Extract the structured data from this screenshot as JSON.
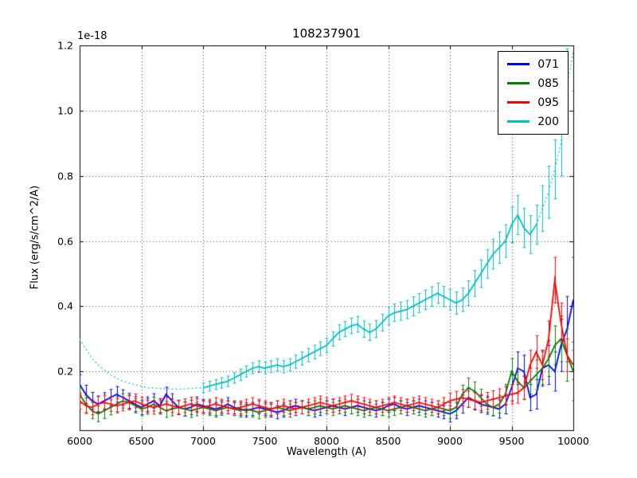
{
  "chart_data": {
    "type": "line",
    "title": "108237901",
    "xlabel": "Wavelength (A)",
    "ylabel": "Flux (erg/s/cm^2/A)",
    "y_offset_label": "1e-18",
    "xlim": [
      6000,
      10000
    ],
    "ylim": [
      0.02,
      1.2
    ],
    "xticks": [
      6000,
      6500,
      7000,
      7500,
      8000,
      8500,
      9000,
      9500,
      10000
    ],
    "xtick_labels": [
      "6000",
      "6500",
      "7000",
      "7500",
      "8000",
      "8500",
      "9000",
      "9500",
      "10000"
    ],
    "yticks": [
      0.2,
      0.4,
      0.6,
      0.8,
      1.0,
      1.2
    ],
    "ytick_labels": [
      "0.2",
      "0.4",
      "0.6",
      "0.8",
      "1.0",
      "1.2"
    ],
    "grid": true,
    "grid_style": "dotted",
    "error_bars": true,
    "legend_position": "upper right",
    "x": [
      6000,
      6050,
      6100,
      6150,
      6200,
      6250,
      6300,
      6350,
      6400,
      6450,
      6500,
      6550,
      6600,
      6650,
      6700,
      6750,
      6800,
      6850,
      6900,
      6950,
      7000,
      7050,
      7100,
      7150,
      7200,
      7250,
      7300,
      7350,
      7400,
      7450,
      7500,
      7550,
      7600,
      7650,
      7700,
      7750,
      7800,
      7850,
      7900,
      7950,
      8000,
      8050,
      8100,
      8150,
      8200,
      8250,
      8300,
      8350,
      8400,
      8450,
      8500,
      8550,
      8600,
      8650,
      8700,
      8750,
      8800,
      8850,
      8900,
      8950,
      9000,
      9050,
      9100,
      9150,
      9200,
      9250,
      9300,
      9350,
      9400,
      9450,
      9500,
      9550,
      9600,
      9650,
      9700,
      9750,
      9800,
      9850,
      9900,
      9950,
      10000
    ],
    "series": [
      {
        "name": "071",
        "color": "#0000ff",
        "style": "solid",
        "values": [
          0.16,
          0.13,
          0.11,
          0.1,
          0.11,
          0.12,
          0.13,
          0.12,
          0.11,
          0.1,
          0.09,
          0.1,
          0.11,
          0.095,
          0.13,
          0.11,
          0.09,
          0.085,
          0.09,
          0.1,
          0.095,
          0.09,
          0.085,
          0.09,
          0.1,
          0.09,
          0.085,
          0.08,
          0.085,
          0.09,
          0.085,
          0.08,
          0.075,
          0.08,
          0.09,
          0.095,
          0.09,
          0.085,
          0.08,
          0.085,
          0.09,
          0.095,
          0.09,
          0.085,
          0.09,
          0.095,
          0.09,
          0.085,
          0.08,
          0.085,
          0.095,
          0.1,
          0.09,
          0.085,
          0.09,
          0.095,
          0.09,
          0.085,
          0.08,
          0.075,
          0.07,
          0.08,
          0.1,
          0.12,
          0.11,
          0.1,
          0.095,
          0.09,
          0.085,
          0.1,
          0.15,
          0.21,
          0.2,
          0.12,
          0.13,
          0.21,
          0.22,
          0.2,
          0.28,
          0.33,
          0.42
        ],
        "err": [
          0.03,
          0.028,
          0.026,
          0.025,
          0.025,
          0.025,
          0.024,
          0.024,
          0.023,
          0.023,
          0.022,
          0.022,
          0.022,
          0.022,
          0.022,
          0.022,
          0.022,
          0.022,
          0.022,
          0.022,
          0.02,
          0.02,
          0.02,
          0.02,
          0.02,
          0.02,
          0.02,
          0.02,
          0.02,
          0.02,
          0.02,
          0.02,
          0.02,
          0.02,
          0.02,
          0.02,
          0.02,
          0.02,
          0.02,
          0.02,
          0.02,
          0.02,
          0.02,
          0.02,
          0.02,
          0.02,
          0.02,
          0.02,
          0.02,
          0.02,
          0.02,
          0.02,
          0.02,
          0.02,
          0.02,
          0.02,
          0.02,
          0.02,
          0.02,
          0.02,
          0.025,
          0.025,
          0.028,
          0.03,
          0.028,
          0.026,
          0.026,
          0.026,
          0.028,
          0.03,
          0.04,
          0.05,
          0.05,
          0.04,
          0.045,
          0.055,
          0.06,
          0.06,
          0.08,
          0.1,
          0.13
        ]
      },
      {
        "name": "085",
        "color": "#008000",
        "style": "solid",
        "values": [
          0.13,
          0.1,
          0.08,
          0.07,
          0.08,
          0.09,
          0.1,
          0.11,
          0.105,
          0.095,
          0.085,
          0.09,
          0.1,
          0.09,
          0.08,
          0.085,
          0.09,
          0.085,
          0.08,
          0.085,
          0.09,
          0.085,
          0.08,
          0.085,
          0.09,
          0.085,
          0.08,
          0.085,
          0.08,
          0.075,
          0.08,
          0.085,
          0.09,
          0.085,
          0.08,
          0.085,
          0.09,
          0.085,
          0.09,
          0.095,
          0.09,
          0.085,
          0.09,
          0.095,
          0.09,
          0.085,
          0.08,
          0.085,
          0.09,
          0.085,
          0.08,
          0.085,
          0.09,
          0.095,
          0.09,
          0.085,
          0.08,
          0.085,
          0.09,
          0.085,
          0.08,
          0.09,
          0.13,
          0.15,
          0.14,
          0.12,
          0.1,
          0.09,
          0.1,
          0.13,
          0.2,
          0.17,
          0.15,
          0.17,
          0.19,
          0.21,
          0.24,
          0.28,
          0.3,
          0.25,
          0.2
        ],
        "err": [
          0.028,
          0.026,
          0.025,
          0.024,
          0.024,
          0.023,
          0.023,
          0.022,
          0.022,
          0.022,
          0.021,
          0.021,
          0.021,
          0.021,
          0.021,
          0.021,
          0.021,
          0.021,
          0.021,
          0.021,
          0.02,
          0.02,
          0.02,
          0.02,
          0.02,
          0.02,
          0.02,
          0.02,
          0.02,
          0.02,
          0.02,
          0.02,
          0.02,
          0.02,
          0.02,
          0.02,
          0.02,
          0.02,
          0.02,
          0.02,
          0.02,
          0.02,
          0.02,
          0.02,
          0.02,
          0.02,
          0.02,
          0.02,
          0.02,
          0.02,
          0.02,
          0.02,
          0.02,
          0.02,
          0.02,
          0.02,
          0.02,
          0.02,
          0.02,
          0.02,
          0.024,
          0.025,
          0.028,
          0.03,
          0.028,
          0.026,
          0.025,
          0.025,
          0.027,
          0.03,
          0.04,
          0.038,
          0.036,
          0.04,
          0.045,
          0.05,
          0.055,
          0.06,
          0.07,
          0.08,
          0.09
        ]
      },
      {
        "name": "095",
        "color": "#ff0000",
        "style": "solid",
        "values": [
          0.11,
          0.095,
          0.09,
          0.1,
          0.105,
          0.1,
          0.095,
          0.1,
          0.105,
          0.11,
          0.1,
          0.095,
          0.09,
          0.095,
          0.1,
          0.095,
          0.09,
          0.095,
          0.1,
          0.095,
          0.09,
          0.095,
          0.1,
          0.095,
          0.09,
          0.085,
          0.09,
          0.095,
          0.1,
          0.095,
          0.09,
          0.085,
          0.09,
          0.095,
          0.09,
          0.085,
          0.09,
          0.095,
          0.1,
          0.105,
          0.1,
          0.095,
          0.1,
          0.105,
          0.11,
          0.105,
          0.1,
          0.095,
          0.09,
          0.095,
          0.1,
          0.105,
          0.1,
          0.095,
          0.1,
          0.105,
          0.1,
          0.095,
          0.09,
          0.1,
          0.11,
          0.115,
          0.12,
          0.115,
          0.11,
          0.105,
          0.11,
          0.115,
          0.12,
          0.125,
          0.13,
          0.135,
          0.15,
          0.22,
          0.26,
          0.22,
          0.3,
          0.48,
          0.35,
          0.25,
          0.22
        ],
        "err": [
          0.025,
          0.024,
          0.023,
          0.023,
          0.022,
          0.022,
          0.022,
          0.021,
          0.021,
          0.021,
          0.021,
          0.021,
          0.021,
          0.021,
          0.021,
          0.021,
          0.021,
          0.021,
          0.021,
          0.021,
          0.02,
          0.02,
          0.02,
          0.02,
          0.02,
          0.02,
          0.02,
          0.02,
          0.02,
          0.02,
          0.02,
          0.02,
          0.02,
          0.02,
          0.02,
          0.02,
          0.02,
          0.02,
          0.02,
          0.02,
          0.02,
          0.02,
          0.02,
          0.02,
          0.02,
          0.02,
          0.02,
          0.02,
          0.02,
          0.02,
          0.02,
          0.02,
          0.02,
          0.02,
          0.02,
          0.02,
          0.02,
          0.02,
          0.02,
          0.02,
          0.024,
          0.024,
          0.025,
          0.025,
          0.025,
          0.025,
          0.026,
          0.026,
          0.027,
          0.028,
          0.03,
          0.032,
          0.035,
          0.045,
          0.05,
          0.045,
          0.055,
          0.07,
          0.06,
          0.05,
          0.045
        ]
      },
      {
        "name": "200",
        "color": "#00bfbf",
        "style": "solid_with_dotted_ends",
        "solid_range": [
          7000,
          9700
        ],
        "values": [
          0.3,
          0.27,
          0.24,
          0.22,
          0.205,
          0.19,
          0.18,
          0.17,
          0.165,
          0.16,
          0.155,
          0.15,
          0.15,
          0.148,
          0.147,
          0.146,
          0.146,
          0.147,
          0.148,
          0.15,
          0.15,
          0.155,
          0.16,
          0.165,
          0.17,
          0.18,
          0.19,
          0.2,
          0.21,
          0.215,
          0.21,
          0.215,
          0.22,
          0.215,
          0.22,
          0.23,
          0.24,
          0.25,
          0.26,
          0.27,
          0.28,
          0.3,
          0.32,
          0.33,
          0.34,
          0.345,
          0.33,
          0.32,
          0.33,
          0.35,
          0.37,
          0.38,
          0.385,
          0.39,
          0.4,
          0.41,
          0.42,
          0.43,
          0.44,
          0.43,
          0.42,
          0.41,
          0.42,
          0.44,
          0.47,
          0.5,
          0.53,
          0.56,
          0.58,
          0.6,
          0.65,
          0.68,
          0.64,
          0.62,
          0.65,
          0.7,
          0.75,
          0.82,
          0.9,
          1.08,
          1.18
        ],
        "err": [
          0,
          0,
          0,
          0,
          0,
          0,
          0,
          0,
          0,
          0,
          0,
          0,
          0,
          0,
          0,
          0,
          0,
          0,
          0,
          0,
          0.015,
          0.015,
          0.015,
          0.016,
          0.016,
          0.016,
          0.017,
          0.017,
          0.017,
          0.018,
          0.018,
          0.018,
          0.019,
          0.019,
          0.019,
          0.02,
          0.02,
          0.02,
          0.021,
          0.021,
          0.022,
          0.022,
          0.023,
          0.023,
          0.024,
          0.024,
          0.025,
          0.025,
          0.026,
          0.026,
          0.027,
          0.027,
          0.028,
          0.028,
          0.029,
          0.029,
          0.03,
          0.03,
          0.031,
          0.031,
          0.032,
          0.034,
          0.036,
          0.038,
          0.04,
          0.042,
          0.044,
          0.046,
          0.048,
          0.05,
          0.055,
          0.06,
          0.06,
          0.058,
          0.06,
          0.07,
          0.08,
          0.09,
          0.1,
          0.11,
          0.12
        ]
      }
    ]
  }
}
